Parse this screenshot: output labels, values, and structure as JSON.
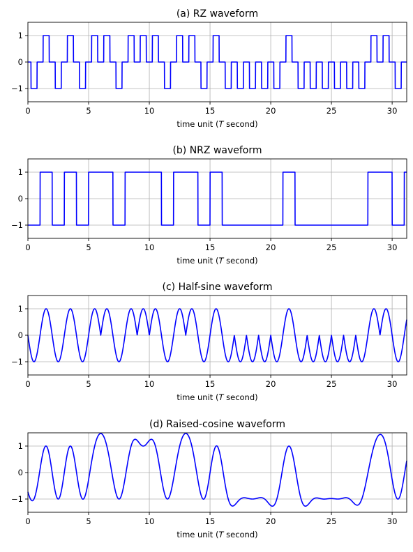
{
  "bits": [
    0,
    1,
    0,
    1,
    0,
    1,
    1,
    0,
    1,
    1,
    1,
    0,
    1,
    1,
    0,
    1,
    0,
    0,
    0,
    0,
    0,
    1,
    0,
    0,
    0,
    0,
    0,
    0,
    1,
    1,
    0,
    1
  ],
  "chart_data": [
    {
      "type": "line",
      "title": "(a) RZ waveform",
      "waveform": "rz",
      "xlabel_pre": "time unit (",
      "xlabel_var": "T",
      "xlabel_post": " second)",
      "xlim": [
        0,
        31.2
      ],
      "ylim": [
        -1.5,
        1.5
      ],
      "xticks": [
        0,
        5,
        10,
        15,
        20,
        25,
        30
      ],
      "yticks": [
        -1,
        0,
        1
      ],
      "grid": true,
      "color": "#0000ff"
    },
    {
      "type": "line",
      "title": "(b) NRZ waveform",
      "waveform": "nrz",
      "xlabel_pre": "time unit (",
      "xlabel_var": "T",
      "xlabel_post": " second)",
      "xlim": [
        0,
        31.2
      ],
      "ylim": [
        -1.5,
        1.5
      ],
      "xticks": [
        0,
        5,
        10,
        15,
        20,
        25,
        30
      ],
      "yticks": [
        -1,
        0,
        1
      ],
      "grid": true,
      "color": "#0000ff"
    },
    {
      "type": "line",
      "title": "(c) Half-sine waveform",
      "waveform": "halfsine",
      "xlabel_pre": "time unit (",
      "xlabel_var": "T",
      "xlabel_post": " second)",
      "xlim": [
        0,
        31.2
      ],
      "ylim": [
        -1.5,
        1.5
      ],
      "xticks": [
        0,
        5,
        10,
        15,
        20,
        25,
        30
      ],
      "yticks": [
        -1,
        0,
        1
      ],
      "grid": true,
      "color": "#0000ff"
    },
    {
      "type": "line",
      "title": "(d) Raised-cosine waveform",
      "waveform": "raisedcosine",
      "xlabel_pre": "time unit (",
      "xlabel_var": "T",
      "xlabel_post": " second)",
      "xlim": [
        0,
        31.2
      ],
      "ylim": [
        -1.5,
        1.5
      ],
      "xticks": [
        0,
        5,
        10,
        15,
        20,
        25,
        30
      ],
      "yticks": [
        -1,
        0,
        1
      ],
      "grid": true,
      "color": "#0000ff"
    }
  ]
}
